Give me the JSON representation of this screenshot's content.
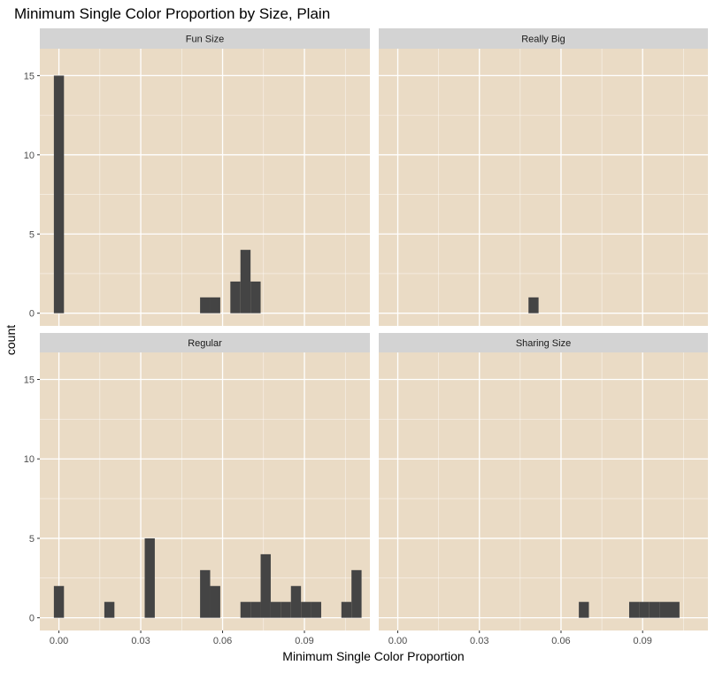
{
  "chart_data": {
    "type": "bar",
    "title": "Minimum Single Color Proportion by Size, Plain",
    "xlabel": "Minimum Single Color Proportion",
    "ylabel": "count",
    "xlim": [
      -0.007,
      0.114
    ],
    "ylim": [
      -0.8,
      16.7
    ],
    "x_ticks": [
      0.0,
      0.03,
      0.06,
      0.09
    ],
    "x_tick_labels": [
      "0.00",
      "0.03",
      "0.06",
      "0.09"
    ],
    "y_ticks": [
      0,
      5,
      10,
      15
    ],
    "y_tick_labels": [
      "0",
      "5",
      "10",
      "15"
    ],
    "bin_width": 0.0037,
    "grid": true,
    "colors": {
      "panel_bg": "#EADBC5",
      "strip_bg": "#D3D3D3",
      "bar": "#444444",
      "grid": "#FFFFFF",
      "text": "#4D4D4D",
      "title": "#000000"
    },
    "panels": [
      {
        "name": "Fun Size",
        "bins": [
          [
            0.0,
            15
          ],
          [
            0.0536,
            1
          ],
          [
            0.0573,
            1
          ],
          [
            0.0647,
            2
          ],
          [
            0.0684,
            4
          ],
          [
            0.0721,
            2
          ]
        ]
      },
      {
        "name": "Really Big",
        "bins": [
          [
            0.0499,
            1
          ]
        ]
      },
      {
        "name": "Regular",
        "bins": [
          [
            0.0,
            2
          ],
          [
            0.0185,
            1
          ],
          [
            0.0333,
            5
          ],
          [
            0.0536,
            3
          ],
          [
            0.0573,
            2
          ],
          [
            0.0684,
            1
          ],
          [
            0.0721,
            1
          ],
          [
            0.0758,
            4
          ],
          [
            0.0795,
            1
          ],
          [
            0.0832,
            1
          ],
          [
            0.0869,
            2
          ],
          [
            0.0906,
            1
          ],
          [
            0.0943,
            1
          ],
          [
            0.1054,
            1
          ],
          [
            0.1091,
            3
          ]
        ]
      },
      {
        "name": "Sharing Size",
        "bins": [
          [
            0.0684,
            1
          ],
          [
            0.0869,
            1
          ],
          [
            0.0906,
            1
          ],
          [
            0.0943,
            1
          ],
          [
            0.098,
            1
          ],
          [
            0.1017,
            1
          ]
        ]
      }
    ]
  }
}
